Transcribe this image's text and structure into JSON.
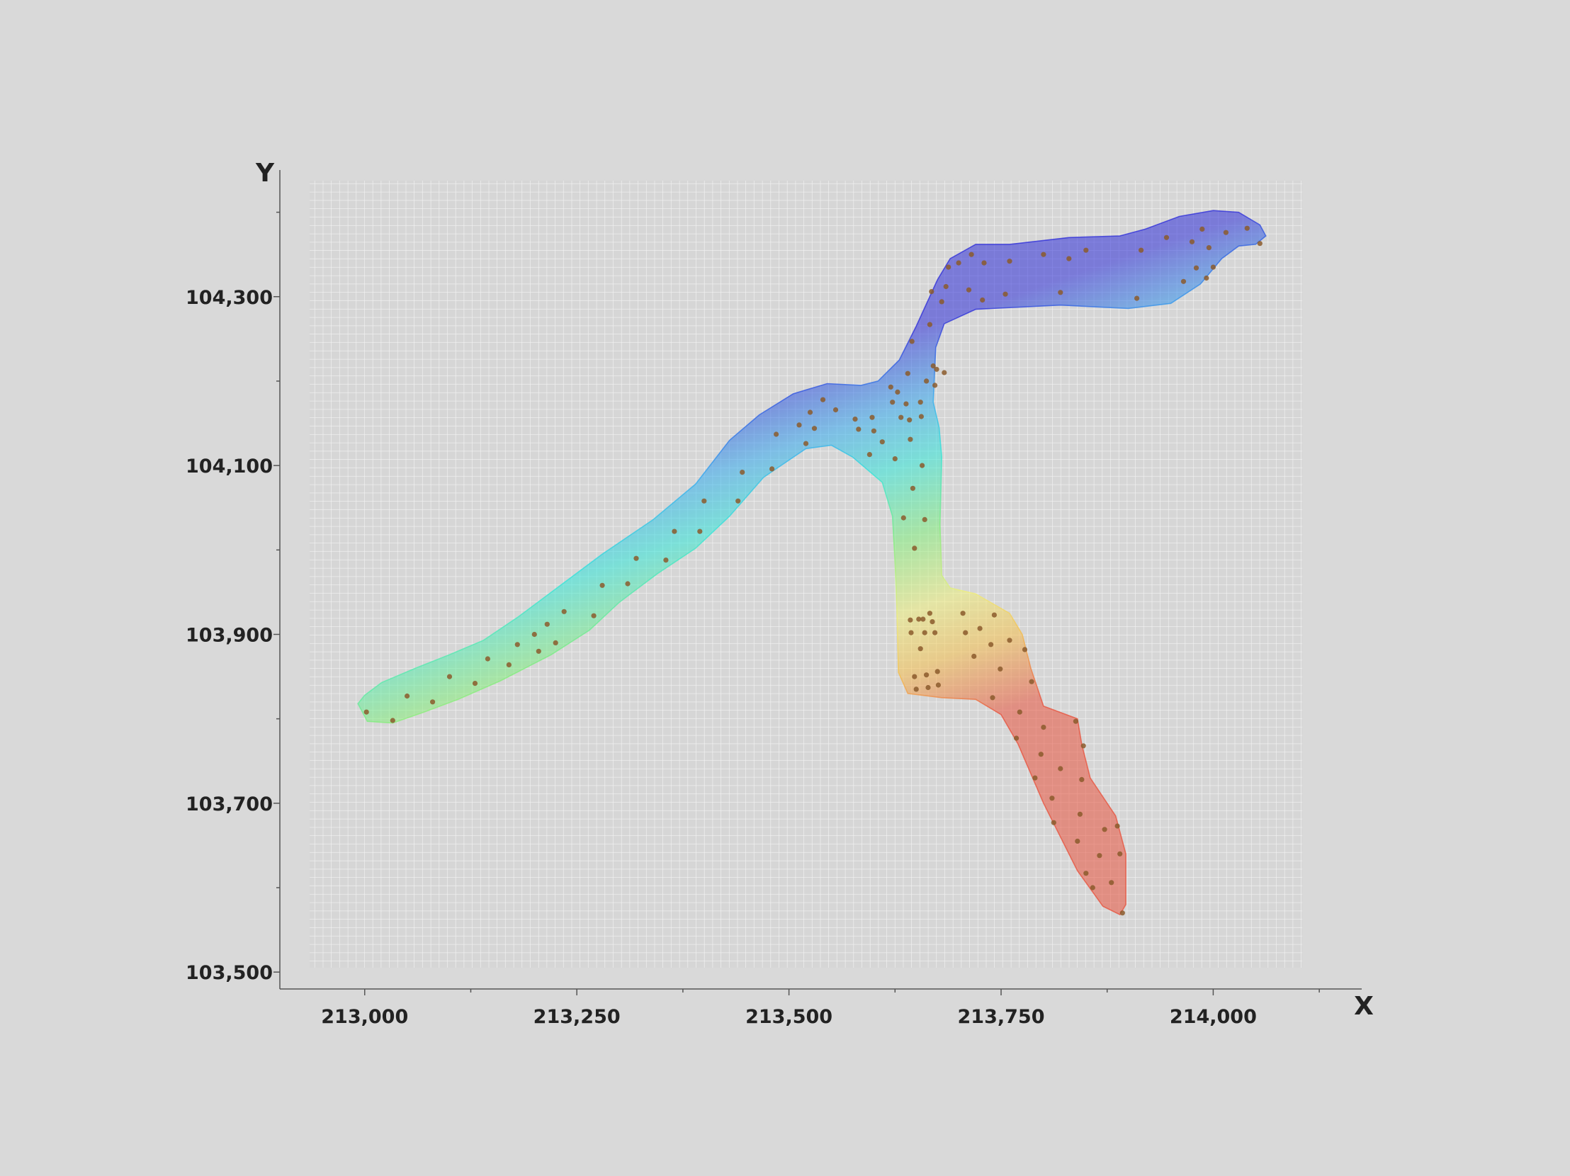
{
  "chart_data": {
    "type": "scatter",
    "title": "",
    "xlabel": "X",
    "ylabel": "Y",
    "xlim": [
      212900,
      214175
    ],
    "ylim": [
      103480,
      104450
    ],
    "x_ticks": [
      213000,
      213250,
      213500,
      213750,
      214000
    ],
    "x_tick_labels": [
      "213,000",
      "213,250",
      "213,500",
      "213,750",
      "214,000"
    ],
    "y_ticks": [
      103500,
      103700,
      103900,
      104100,
      104300
    ],
    "y_tick_labels": [
      "103,500",
      "103,700",
      "103,900",
      "104,100",
      "104,300"
    ],
    "grid": true,
    "colormap": [
      "#2b2bd9",
      "#31a9f0",
      "#2ee6d8",
      "#7fee7a",
      "#f0f07a",
      "#f5c04a",
      "#e8503a"
    ],
    "point_color": "#8b5a2b",
    "region_outline": [
      [
        212992,
        103818
      ],
      [
        213003,
        103797
      ],
      [
        213033,
        103795
      ],
      [
        213070,
        103808
      ],
      [
        213110,
        103823
      ],
      [
        213160,
        103845
      ],
      [
        213220,
        103876
      ],
      [
        213265,
        103905
      ],
      [
        213300,
        103938
      ],
      [
        213345,
        103972
      ],
      [
        213390,
        104002
      ],
      [
        213430,
        104040
      ],
      [
        213470,
        104086
      ],
      [
        213520,
        104120
      ],
      [
        213550,
        104124
      ],
      [
        213575,
        104110
      ],
      [
        213610,
        104080
      ],
      [
        213622,
        104040
      ],
      [
        213625,
        103985
      ],
      [
        213627,
        103935
      ],
      [
        213629,
        103855
      ],
      [
        213640,
        103830
      ],
      [
        213680,
        103825
      ],
      [
        213720,
        103823
      ],
      [
        213750,
        103805
      ],
      [
        213770,
        103770
      ],
      [
        213800,
        103700
      ],
      [
        213840,
        103620
      ],
      [
        213870,
        103578
      ],
      [
        213890,
        103568
      ],
      [
        213897,
        103580
      ],
      [
        213897,
        103640
      ],
      [
        213885,
        103685
      ],
      [
        213855,
        103730
      ],
      [
        213845,
        103770
      ],
      [
        213840,
        103800
      ],
      [
        213800,
        103815
      ],
      [
        213785,
        103860
      ],
      [
        213775,
        103900
      ],
      [
        213760,
        103925
      ],
      [
        213720,
        103948
      ],
      [
        213690,
        103955
      ],
      [
        213680,
        103970
      ],
      [
        213678,
        104030
      ],
      [
        213680,
        104110
      ],
      [
        213677,
        104145
      ],
      [
        213670,
        104175
      ],
      [
        213673,
        104240
      ],
      [
        213683,
        104268
      ],
      [
        213720,
        104285
      ],
      [
        213820,
        104290
      ],
      [
        213900,
        104286
      ],
      [
        213950,
        104292
      ],
      [
        213985,
        104315
      ],
      [
        214010,
        104345
      ],
      [
        214030,
        104360
      ],
      [
        214050,
        104362
      ],
      [
        214062,
        104372
      ],
      [
        214055,
        104385
      ],
      [
        214030,
        104400
      ],
      [
        214000,
        104402
      ],
      [
        213960,
        104395
      ],
      [
        213920,
        104380
      ],
      [
        213890,
        104372
      ],
      [
        213830,
        104370
      ],
      [
        213760,
        104362
      ],
      [
        213720,
        104362
      ],
      [
        213690,
        104345
      ],
      [
        213675,
        104320
      ],
      [
        213650,
        104265
      ],
      [
        213630,
        104225
      ],
      [
        213605,
        104200
      ],
      [
        213585,
        104195
      ],
      [
        213545,
        104197
      ],
      [
        213505,
        104185
      ],
      [
        213465,
        104160
      ],
      [
        213430,
        104130
      ],
      [
        213390,
        104078
      ],
      [
        213340,
        104036
      ],
      [
        213280,
        103995
      ],
      [
        213220,
        103950
      ],
      [
        213180,
        103920
      ],
      [
        213140,
        103893
      ],
      [
        213100,
        103876
      ],
      [
        213060,
        103860
      ],
      [
        213020,
        103843
      ],
      [
        213000,
        103828
      ]
    ],
    "points": [
      [
        213002,
        103808
      ],
      [
        213033,
        103798
      ],
      [
        213050,
        103827
      ],
      [
        213080,
        103820
      ],
      [
        213100,
        103850
      ],
      [
        213130,
        103842
      ],
      [
        213145,
        103871
      ],
      [
        213170,
        103864
      ],
      [
        213180,
        103888
      ],
      [
        213200,
        103900
      ],
      [
        213205,
        103880
      ],
      [
        213215,
        103912
      ],
      [
        213225,
        103890
      ],
      [
        213235,
        103927
      ],
      [
        213270,
        103922
      ],
      [
        213280,
        103958
      ],
      [
        213310,
        103960
      ],
      [
        213320,
        103990
      ],
      [
        213355,
        103988
      ],
      [
        213365,
        104022
      ],
      [
        213395,
        104022
      ],
      [
        213400,
        104058
      ],
      [
        213440,
        104058
      ],
      [
        213445,
        104092
      ],
      [
        213480,
        104096
      ],
      [
        213485,
        104137
      ],
      [
        213512,
        104148
      ],
      [
        213520,
        104126
      ],
      [
        213525,
        104163
      ],
      [
        213530,
        104144
      ],
      [
        213540,
        104178
      ],
      [
        213555,
        104166
      ],
      [
        213578,
        104155
      ],
      [
        213582,
        104143
      ],
      [
        213595,
        104113
      ],
      [
        213598,
        104157
      ],
      [
        213600,
        104141
      ],
      [
        213610,
        104128
      ],
      [
        213620,
        104193
      ],
      [
        213622,
        104175
      ],
      [
        213625,
        104108
      ],
      [
        213628,
        104187
      ],
      [
        213632,
        104157
      ],
      [
        213635,
        104038
      ],
      [
        213638,
        104173
      ],
      [
        213640,
        104209
      ],
      [
        213642,
        104154
      ],
      [
        213643,
        104131
      ],
      [
        213645,
        104247
      ],
      [
        213646,
        104073
      ],
      [
        213648,
        104002
      ],
      [
        213655,
        104175
      ],
      [
        213656,
        104158
      ],
      [
        213657,
        104100
      ],
      [
        213660,
        104036
      ],
      [
        213662,
        104200
      ],
      [
        213666,
        104267
      ],
      [
        213668,
        104306
      ],
      [
        213670,
        104218
      ],
      [
        213672,
        104195
      ],
      [
        213674,
        104214
      ],
      [
        213680,
        104294
      ],
      [
        213683,
        104210
      ],
      [
        213685,
        104312
      ],
      [
        213688,
        104335
      ],
      [
        213700,
        104340
      ],
      [
        213712,
        104308
      ],
      [
        213715,
        104350
      ],
      [
        213728,
        104296
      ],
      [
        213730,
        104340
      ],
      [
        213755,
        104303
      ],
      [
        213760,
        104342
      ],
      [
        213800,
        104350
      ],
      [
        213820,
        104305
      ],
      [
        213830,
        104345
      ],
      [
        213850,
        104355
      ],
      [
        213910,
        104298
      ],
      [
        213915,
        104355
      ],
      [
        213945,
        104370
      ],
      [
        213965,
        104318
      ],
      [
        213975,
        104365
      ],
      [
        213980,
        104334
      ],
      [
        213987,
        104380
      ],
      [
        213992,
        104322
      ],
      [
        213995,
        104358
      ],
      [
        214000,
        104335
      ],
      [
        214015,
        104376
      ],
      [
        214040,
        104381
      ],
      [
        214055,
        104363
      ],
      [
        213643,
        103917
      ],
      [
        213644,
        103902
      ],
      [
        213648,
        103850
      ],
      [
        213650,
        103835
      ],
      [
        213653,
        103918
      ],
      [
        213655,
        103883
      ],
      [
        213658,
        103918
      ],
      [
        213660,
        103902
      ],
      [
        213662,
        103852
      ],
      [
        213664,
        103837
      ],
      [
        213666,
        103925
      ],
      [
        213669,
        103915
      ],
      [
        213672,
        103902
      ],
      [
        213675,
        103856
      ],
      [
        213676,
        103840
      ],
      [
        213705,
        103925
      ],
      [
        213708,
        103902
      ],
      [
        213718,
        103874
      ],
      [
        213725,
        103907
      ],
      [
        213738,
        103888
      ],
      [
        213740,
        103825
      ],
      [
        213742,
        103923
      ],
      [
        213749,
        103859
      ],
      [
        213760,
        103893
      ],
      [
        213768,
        103777
      ],
      [
        213772,
        103808
      ],
      [
        213778,
        103882
      ],
      [
        213786,
        103844
      ],
      [
        213790,
        103730
      ],
      [
        213797,
        103758
      ],
      [
        213800,
        103790
      ],
      [
        213810,
        103706
      ],
      [
        213812,
        103677
      ],
      [
        213820,
        103741
      ],
      [
        213838,
        103797
      ],
      [
        213840,
        103655
      ],
      [
        213843,
        103687
      ],
      [
        213845,
        103728
      ],
      [
        213847,
        103768
      ],
      [
        213850,
        103617
      ],
      [
        213858,
        103600
      ],
      [
        213866,
        103638
      ],
      [
        213872,
        103669
      ],
      [
        213880,
        103606
      ],
      [
        213887,
        103673
      ],
      [
        213890,
        103640
      ],
      [
        213893,
        103570
      ]
    ]
  }
}
